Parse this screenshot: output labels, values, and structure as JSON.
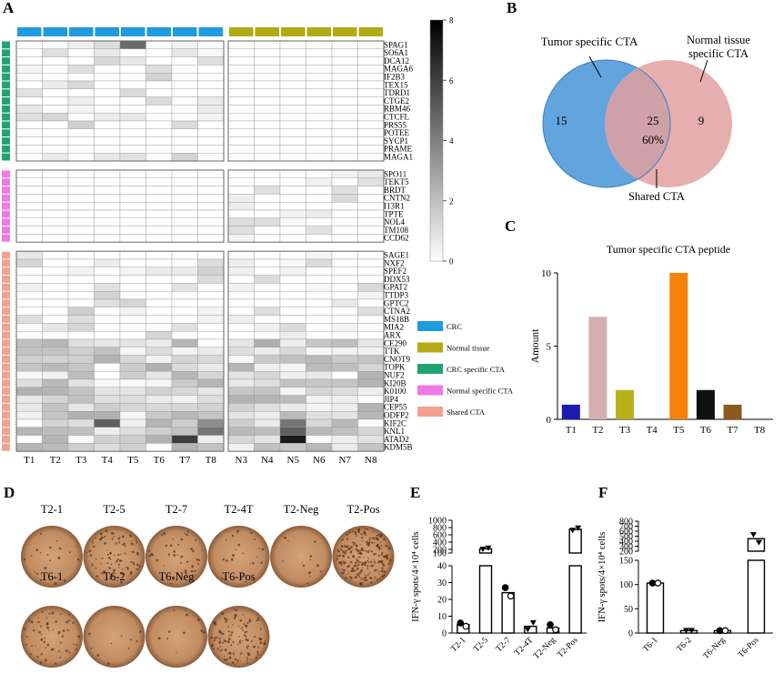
{
  "panels": {
    "A": "A",
    "B": "B",
    "C": "C",
    "D": "D",
    "E": "E",
    "F": "F"
  },
  "colors": {
    "crc": "#1f9be0",
    "normal": "#b4aa14",
    "crc_specific": "#20a370",
    "normal_specific": "#f07ae5",
    "shared": "#f4a090",
    "venn_left": "#5aa0dc",
    "venn_right": "#e2a0a0",
    "dish_base": "#c5946c"
  },
  "heatmap": {
    "samples": [
      "T1",
      "T2",
      "T3",
      "T4",
      "T5",
      "T6",
      "T7",
      "T8",
      "N3",
      "N4",
      "N5",
      "N6",
      "N7",
      "N8"
    ],
    "group_a_genes": [
      "SPAG1",
      "SO6A1",
      "DCA12",
      "MAGA6",
      "IF2B3",
      "TEX15",
      "TDRD1",
      "CTGE2",
      "RBM46",
      "CTCFL",
      "PRS55",
      "POTEE",
      "SYCP1",
      "PRAME",
      "MAGA1"
    ],
    "group_b_genes": [
      "SPO11",
      "TEKT5",
      "BRDT",
      "CNTN2",
      "I13R1",
      "TPTE",
      "NOL4",
      "TM108",
      "CCD62"
    ],
    "group_c_genes": [
      "SAGE1",
      "NXF2",
      "SPEF2",
      "DDX53",
      "GPAT2",
      "TTDP3",
      "GPTC2",
      "CTNA2",
      "MS18B",
      "MIA2",
      "ARX",
      "CE290",
      "TTK",
      "CNOT9",
      "TOPK",
      "NUF2",
      "KI20B",
      "K0100",
      "JIP4",
      "CEP55",
      "ODFP2",
      "KIF2C",
      "KNL1",
      "ATAD2",
      "KDM5B"
    ],
    "colorbar": {
      "ticks": [
        "0",
        "2",
        "4",
        "6",
        "8"
      ],
      "range": [
        0,
        8
      ]
    },
    "legend": [
      "CRC",
      "Normal tissue",
      "CRC specific CTA",
      "Normal specific CTA",
      "Shared CTA"
    ]
  },
  "venn": {
    "left_label": "Tumor specific CTA",
    "right_label_line1": "Normal tissue",
    "right_label_line2": "specific CTA",
    "left_count": "15",
    "shared_count": "25",
    "shared_pct": "60%",
    "right_count": "9",
    "bottom_label": "Shared CTA"
  },
  "chart_data": [
    {
      "type": "bar",
      "title": "Tumor specific CTA peptide",
      "xlabel": "",
      "ylabel": "Amount",
      "categories": [
        "T1",
        "T2",
        "T3",
        "T4",
        "T5",
        "T6",
        "T7",
        "T8"
      ],
      "values": [
        1,
        7,
        2,
        0,
        10,
        2,
        1,
        0
      ],
      "colors": [
        "#1b1bb0",
        "#d4b0b0",
        "#b8b018",
        "#ffffff",
        "#f5820a",
        "#111111",
        "#8a5a20",
        "#ffffff"
      ],
      "ylim": [
        0,
        10
      ],
      "yticks": [
        "0",
        "5",
        "10"
      ]
    },
    {
      "type": "bar",
      "ylabel": "IFN-γ spots/4×10⁴ cells",
      "categories": [
        "T2-1",
        "T2-5",
        "T2-7",
        "T2-4T",
        "T2-Neg",
        "T2-Pos"
      ],
      "values": [
        5,
        215,
        24,
        4,
        3,
        750
      ],
      "points": [
        [
          6,
          4
        ],
        [
          200,
          230
        ],
        [
          27,
          22
        ],
        [
          2,
          6
        ],
        [
          5,
          2
        ],
        [
          720,
          780
        ]
      ],
      "ylim_lower": [
        0,
        40
      ],
      "ylim_upper": [
        100,
        1000
      ],
      "yticks_lower": [
        "0",
        "10",
        "20",
        "30",
        "40"
      ],
      "yticks_upper": [
        "100",
        "200",
        "400",
        "600",
        "800",
        "1000"
      ]
    },
    {
      "type": "bar",
      "ylabel": "IFN-γ spots/4×10⁴ cells",
      "categories": [
        "T6-1",
        "T6-2",
        "T6-Neg",
        "T6-Pos"
      ],
      "values": [
        103,
        5,
        5,
        450
      ],
      "points": [
        [
          103,
          103
        ],
        [
          5,
          5
        ],
        [
          5,
          5
        ],
        [
          525,
          370
        ]
      ],
      "ylim_lower": [
        0,
        150
      ],
      "ylim_upper": [
        200,
        800
      ],
      "yticks_lower": [
        "0",
        "50",
        "100",
        "150"
      ],
      "yticks_upper": [
        "200",
        "300",
        "400",
        "500",
        "600",
        "700",
        "800"
      ]
    }
  ],
  "elispot": {
    "row1": [
      {
        "label": "T2-1",
        "density": 0.08
      },
      {
        "label": "T2-5",
        "density": 0.4
      },
      {
        "label": "T2-7",
        "density": 0.15
      },
      {
        "label": "T2-4T",
        "density": 0.08
      },
      {
        "label": "T2-Neg",
        "density": 0.05
      },
      {
        "label": "T2-Pos",
        "density": 0.9
      }
    ],
    "row2": [
      {
        "label": "T6-1",
        "density": 0.22
      },
      {
        "label": "T6-2",
        "density": 0.04
      },
      {
        "label": "T6-Neg",
        "density": 0.04
      },
      {
        "label": "T6-Pos",
        "density": 0.45
      }
    ]
  }
}
